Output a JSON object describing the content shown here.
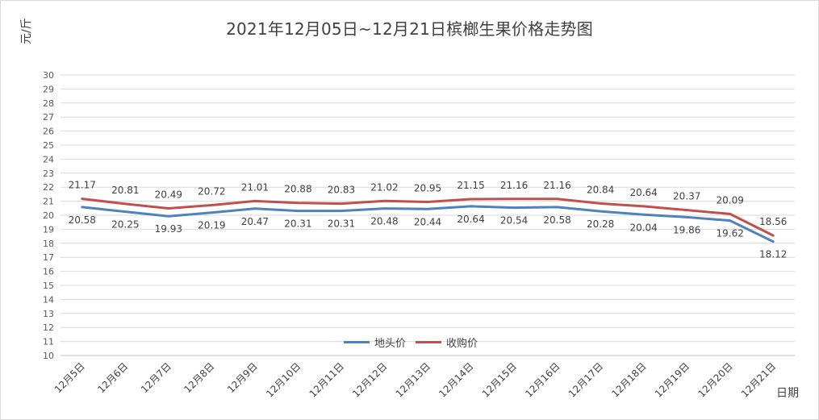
{
  "chart_data": {
    "type": "line",
    "title": "2021年12月05日~12月21日槟榔生果价格走势图",
    "ylabel": "元/斤",
    "xlabel": "日期",
    "ylim": [
      10,
      30
    ],
    "yticks": [
      10,
      11,
      12,
      13,
      14,
      15,
      16,
      17,
      18,
      19,
      20,
      21,
      22,
      23,
      24,
      25,
      26,
      27,
      28,
      29,
      30
    ],
    "categories": [
      "12月5日",
      "12月6日",
      "12月7日",
      "12月8日",
      "12月9日",
      "12月10日",
      "12月11日",
      "12月12日",
      "12月13日",
      "12月14日",
      "12月15日",
      "12月16日",
      "12月17日",
      "12月18日",
      "12月19日",
      "12月20日",
      "12月21日"
    ],
    "grid": true,
    "legend_position": "bottom-center",
    "series": [
      {
        "name": "地头价",
        "color": "#4f81bd",
        "values": [
          20.58,
          20.25,
          19.93,
          20.19,
          20.47,
          20.31,
          20.31,
          20.48,
          20.44,
          20.64,
          20.54,
          20.58,
          20.28,
          20.04,
          19.86,
          19.62,
          18.12
        ],
        "labels": [
          "20.58",
          "20.25",
          "19.93",
          "20.19",
          "20.47",
          "20.31",
          "20.31",
          "20.48",
          "20.44",
          "20.64",
          "20.54",
          "20.58",
          "20.28",
          "20.04",
          "19.86",
          "19.62",
          "18.12"
        ]
      },
      {
        "name": "收购价",
        "color": "#c0504d",
        "values": [
          21.17,
          20.81,
          20.49,
          20.72,
          21.01,
          20.88,
          20.83,
          21.02,
          20.95,
          21.15,
          21.16,
          21.16,
          20.84,
          20.64,
          20.37,
          20.09,
          18.56
        ],
        "labels": [
          "21.17",
          "20.81",
          "20.49",
          "20.72",
          "21.01",
          "20.88",
          "20.83",
          "21.02",
          "20.95",
          "21.15",
          "21.16",
          "21.16",
          "20.84",
          "20.64",
          "20.37",
          "20.09",
          "18.56"
        ]
      }
    ]
  }
}
